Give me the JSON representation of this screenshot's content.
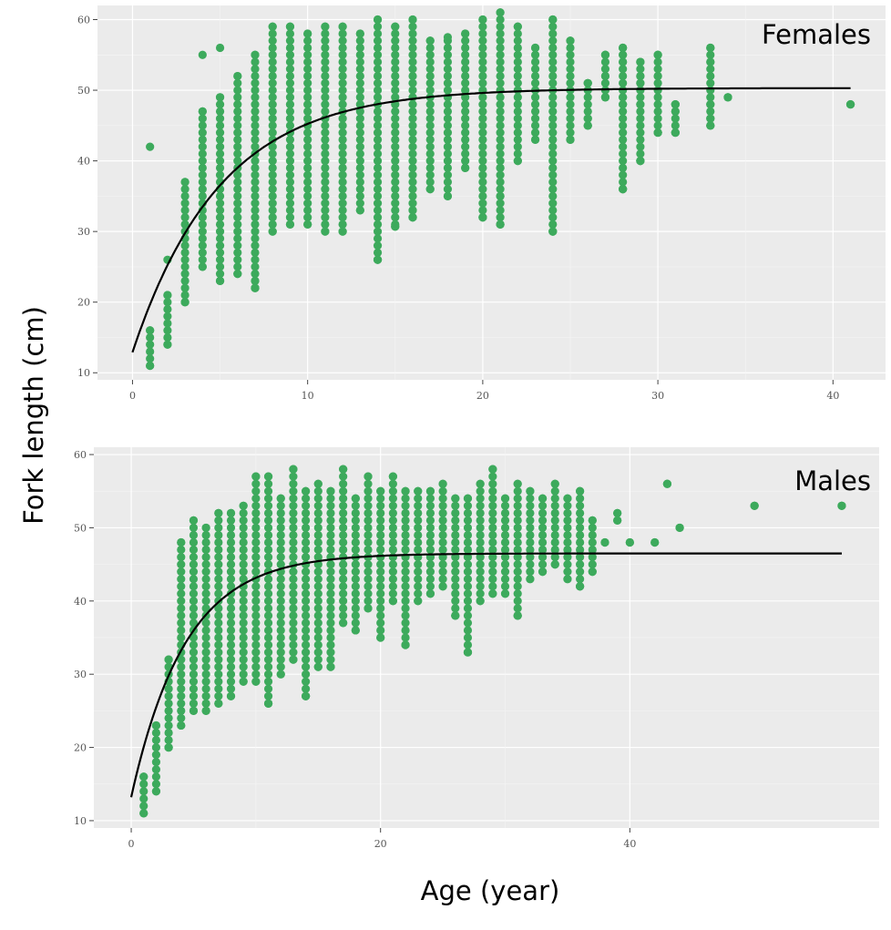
{
  "figure": {
    "ylabel": "Fork length (cm)",
    "xlabel": "Age (year)"
  },
  "chart_data": [
    {
      "type": "scatter",
      "panel_label": "Females",
      "xlim": [
        -2,
        43
      ],
      "ylim": [
        9,
        62
      ],
      "xticks": [
        0,
        10,
        20,
        30,
        40
      ],
      "yticks": [
        10,
        20,
        30,
        40,
        50,
        60
      ],
      "point_color": "#3DAA5C",
      "grid": true,
      "ranges": [
        [
          1,
          11,
          16
        ],
        [
          2,
          14,
          21
        ],
        [
          3,
          20,
          37
        ],
        [
          4,
          25,
          47
        ],
        [
          5,
          23,
          49
        ],
        [
          6,
          24,
          52
        ],
        [
          7,
          22,
          55
        ],
        [
          8,
          30,
          59
        ],
        [
          9,
          31,
          59
        ],
        [
          10,
          31,
          58
        ],
        [
          11,
          30,
          59
        ],
        [
          12,
          30,
          59
        ],
        [
          13,
          33,
          58
        ],
        [
          14,
          26,
          60
        ],
        [
          15,
          30.7,
          59
        ],
        [
          16,
          32,
          60
        ],
        [
          17,
          36,
          57
        ],
        [
          18,
          35,
          57.5
        ],
        [
          19,
          39,
          58
        ],
        [
          20,
          32,
          60
        ],
        [
          21,
          31,
          61
        ],
        [
          22,
          40,
          59
        ],
        [
          23,
          43,
          56
        ],
        [
          24,
          30,
          60
        ],
        [
          25,
          43,
          57
        ],
        [
          26,
          45,
          51
        ],
        [
          27,
          49,
          55
        ],
        [
          28,
          36,
          56
        ],
        [
          29,
          40,
          54
        ],
        [
          30,
          44,
          55
        ],
        [
          31,
          44,
          48
        ],
        [
          33,
          45,
          56
        ],
        [
          34,
          49,
          49
        ],
        [
          41,
          48,
          48
        ]
      ],
      "points": [
        [
          1,
          42
        ],
        [
          2,
          26
        ],
        [
          3,
          20
        ],
        [
          4,
          55
        ],
        [
          5,
          56
        ],
        [
          5,
          23
        ],
        [
          7,
          22
        ],
        [
          7,
          23
        ],
        [
          14,
          26
        ],
        [
          15,
          30.7
        ],
        [
          16,
          32
        ],
        [
          16,
          33
        ],
        [
          20,
          32
        ],
        [
          21,
          31
        ],
        [
          21,
          35
        ],
        [
          21,
          39
        ],
        [
          24,
          30
        ],
        [
          24,
          60
        ],
        [
          25,
          43
        ],
        [
          26,
          45
        ],
        [
          26,
          46
        ],
        [
          26,
          51
        ],
        [
          27,
          49
        ],
        [
          27,
          52
        ],
        [
          27,
          55
        ],
        [
          28,
          36
        ],
        [
          28,
          48
        ],
        [
          28,
          49
        ],
        [
          28,
          54
        ],
        [
          28,
          55
        ],
        [
          28,
          56
        ],
        [
          29,
          40
        ],
        [
          29,
          48
        ],
        [
          29,
          51
        ],
        [
          29,
          52
        ],
        [
          29,
          54
        ],
        [
          30,
          44
        ],
        [
          30,
          52
        ],
        [
          30,
          55
        ],
        [
          31,
          44
        ],
        [
          31,
          47
        ],
        [
          31,
          48
        ],
        [
          33,
          45
        ],
        [
          33,
          46
        ],
        [
          33,
          48
        ],
        [
          33,
          54
        ],
        [
          33,
          56
        ],
        [
          34,
          49
        ],
        [
          41,
          48
        ]
      ],
      "curve": {
        "Linf": 50.3,
        "K": 0.2,
        "L0": 12.9
      }
    },
    {
      "type": "scatter",
      "panel_label": "Males",
      "xlim": [
        -3,
        60
      ],
      "ylim": [
        9,
        61
      ],
      "xticks": [
        0,
        20,
        40
      ],
      "yticks": [
        10,
        20,
        30,
        40,
        50,
        60
      ],
      "point_color": "#3DAA5C",
      "grid": true,
      "ranges": [
        [
          1,
          11,
          16
        ],
        [
          2,
          14,
          23
        ],
        [
          3,
          20,
          32
        ],
        [
          4,
          23,
          48
        ],
        [
          5,
          25,
          51
        ],
        [
          6,
          25,
          50
        ],
        [
          7,
          26,
          52
        ],
        [
          8,
          27,
          52
        ],
        [
          9,
          29,
          53
        ],
        [
          10,
          29,
          57
        ],
        [
          11,
          26,
          57
        ],
        [
          12,
          30,
          54
        ],
        [
          13,
          32,
          58
        ],
        [
          14,
          27,
          55
        ],
        [
          15,
          31,
          56
        ],
        [
          16,
          31,
          55
        ],
        [
          17,
          37,
          58
        ],
        [
          18,
          36,
          54
        ],
        [
          19,
          39,
          57
        ],
        [
          20,
          35,
          55
        ],
        [
          21,
          40,
          57
        ],
        [
          22,
          34,
          55
        ],
        [
          23,
          40,
          55
        ],
        [
          24,
          41,
          55
        ],
        [
          25,
          42,
          56
        ],
        [
          26,
          38,
          54
        ],
        [
          27,
          33,
          54
        ],
        [
          28,
          40,
          56
        ],
        [
          29,
          41,
          58
        ],
        [
          30,
          41,
          54
        ],
        [
          31,
          38,
          56
        ],
        [
          32,
          43,
          55
        ],
        [
          33,
          44,
          54
        ],
        [
          34,
          45,
          56
        ],
        [
          35,
          43,
          54
        ],
        [
          36,
          42,
          55
        ],
        [
          37,
          44,
          51
        ],
        [
          38,
          48,
          48
        ],
        [
          39,
          51,
          52
        ],
        [
          40,
          48,
          48
        ],
        [
          42,
          48,
          48
        ],
        [
          43,
          56,
          56
        ],
        [
          44,
          50,
          50
        ],
        [
          50,
          53,
          53
        ],
        [
          57,
          53,
          53
        ]
      ],
      "points": [
        [
          3,
          20
        ],
        [
          11,
          26
        ],
        [
          14,
          27
        ],
        [
          22,
          34
        ],
        [
          26,
          38
        ],
        [
          27,
          33
        ],
        [
          31,
          38
        ],
        [
          36,
          42
        ],
        [
          43,
          56
        ],
        [
          44,
          50
        ],
        [
          50,
          53
        ],
        [
          57,
          53
        ]
      ],
      "curve": {
        "Linf": 46.5,
        "K": 0.23,
        "L0": 13.2
      }
    }
  ]
}
